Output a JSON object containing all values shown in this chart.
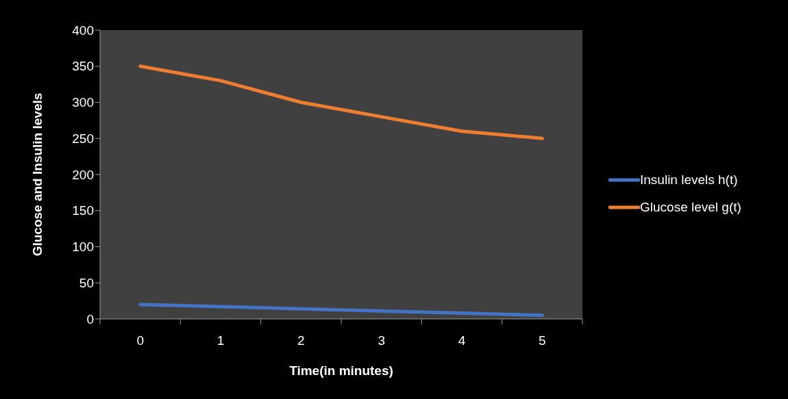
{
  "chart_data": {
    "type": "line",
    "xlabel": "Time(in minutes)",
    "ylabel": "Glucose and Insulin levels",
    "categories": [
      "0",
      "1",
      "2",
      "3",
      "4",
      "5"
    ],
    "series": [
      {
        "name": "Insulin levels h(t)",
        "color": "#4472c4",
        "values": [
          20,
          17,
          14,
          11,
          8,
          5
        ]
      },
      {
        "name": "Glucose level g(t)",
        "color": "#ed7d31",
        "values": [
          350,
          330,
          300,
          280,
          260,
          250
        ]
      }
    ],
    "ylim": [
      0,
      400
    ],
    "yticks": [
      0,
      50,
      100,
      150,
      200,
      250,
      300,
      350,
      400
    ],
    "grid": false,
    "legend": "right",
    "marker": "none",
    "line_style": "solid"
  }
}
